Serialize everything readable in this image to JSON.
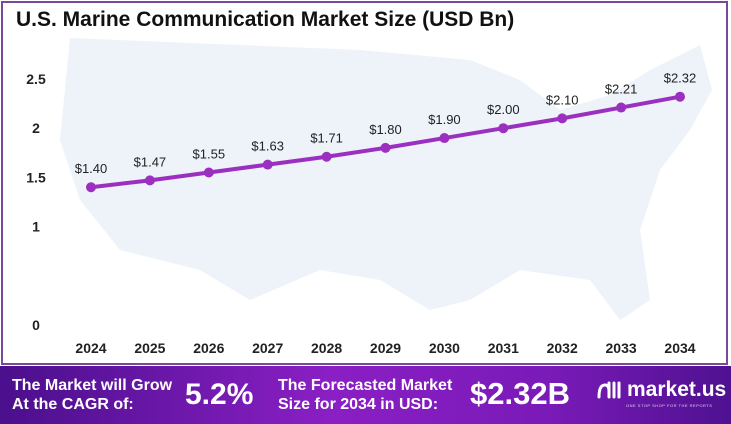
{
  "chart_data": {
    "type": "line",
    "title": "U.S. Marine Communication Market Size (USD Bn)",
    "categories": [
      "2024",
      "2025",
      "2026",
      "2027",
      "2028",
      "2029",
      "2030",
      "2031",
      "2032",
      "2033",
      "2034"
    ],
    "values": [
      1.4,
      1.47,
      1.55,
      1.63,
      1.71,
      1.8,
      1.9,
      2.0,
      2.1,
      2.21,
      2.32
    ],
    "data_labels": [
      "$1.40",
      "$1.47",
      "$1.55",
      "$1.63",
      "$1.71",
      "$1.80",
      "$1.90",
      "$2.00",
      "$2.10",
      "$2.21",
      "$2.32"
    ],
    "yticks": [
      "0",
      "0.5",
      "1",
      "1.5",
      "2",
      "2.5"
    ],
    "ylim": [
      0,
      2.5
    ],
    "xlabel": "",
    "ylabel": "",
    "grid": false,
    "line_color": "#9b30c0"
  },
  "banner": {
    "cagr_label": "The Market will Grow At the CAGR of:",
    "cagr_value": "5.2%",
    "forecast_label": "The Forecasted Market Size for 2034 in USD:",
    "forecast_value": "$2.32B",
    "logo_text": "market.us",
    "logo_tagline": "ONE STOP SHOP FOR THE REPORTS"
  }
}
